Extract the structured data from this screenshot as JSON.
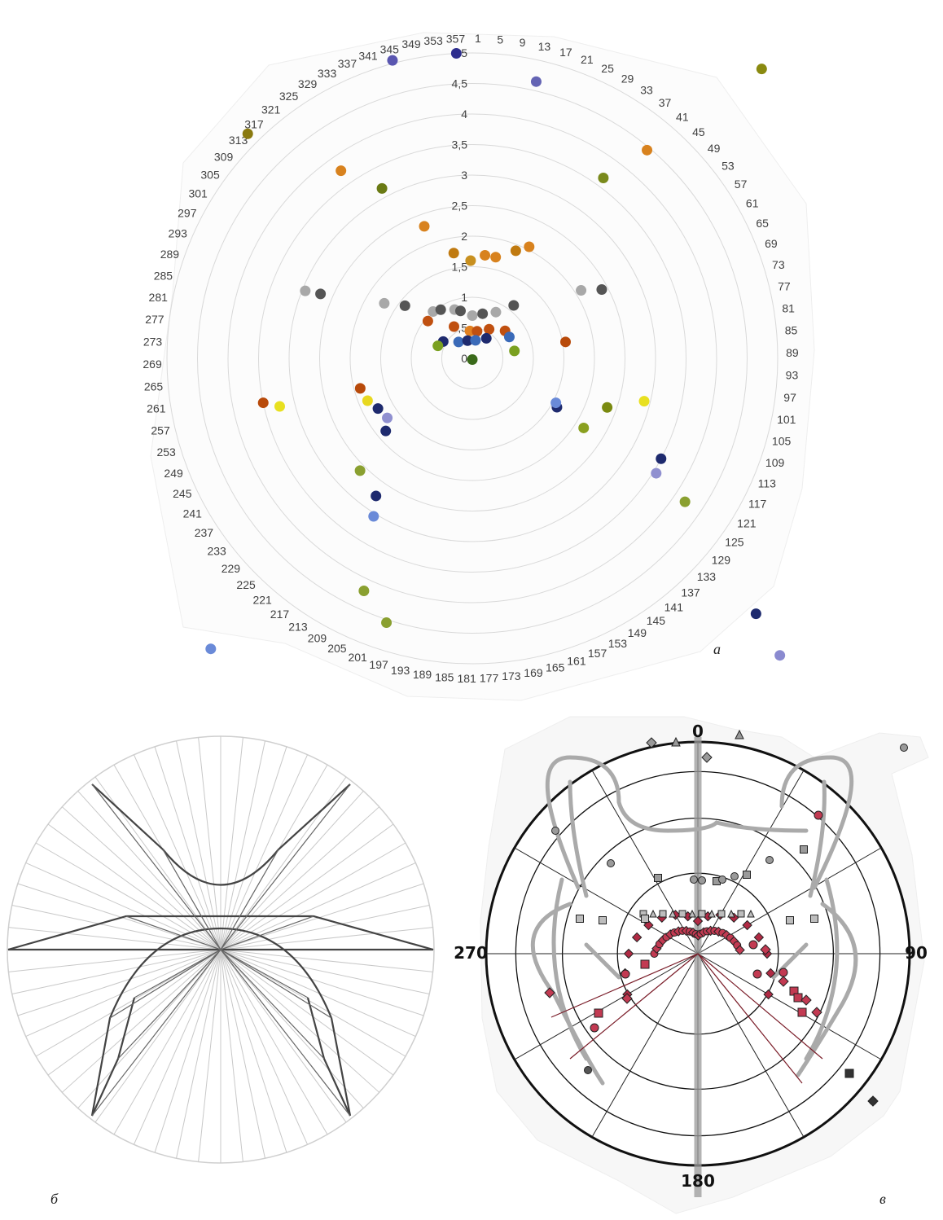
{
  "figure": {
    "panel_labels": [
      "а",
      "б",
      "в"
    ]
  },
  "chart_data": [
    {
      "type": "scatter",
      "polar": true,
      "panel": "а",
      "theta_ticks": [
        "1",
        "5",
        "9",
        "13",
        "17",
        "21",
        "25",
        "29",
        "33",
        "37",
        "41",
        "45",
        "49",
        "53",
        "57",
        "61",
        "65",
        "69",
        "73",
        "77",
        "81",
        "85",
        "89",
        "93",
        "97",
        "101",
        "105",
        "109",
        "113",
        "117",
        "121",
        "125",
        "129",
        "133",
        "137",
        "141",
        "145",
        "149",
        "153",
        "157",
        "161",
        "165",
        "169",
        "173",
        "177",
        "181",
        "185",
        "189",
        "193",
        "197",
        "201",
        "205",
        "209",
        "213",
        "217",
        "221",
        "225",
        "229",
        "233",
        "237",
        "241",
        "245",
        "249",
        "253",
        "257",
        "261",
        "265",
        "269",
        "273",
        "277",
        "281",
        "285",
        "289",
        "293",
        "297",
        "301",
        "305",
        "309",
        "313",
        "317",
        "321",
        "325",
        "329",
        "333",
        "337",
        "341",
        "345",
        "349",
        "353",
        "357"
      ],
      "r_ticks": [
        "0",
        "0,5",
        "1",
        "1,5",
        "2",
        "2,5",
        "3",
        "3,5",
        "4",
        "4,5",
        "5"
      ],
      "r_range": [
        0,
        5
      ],
      "grid": true,
      "points": [
        {
          "theta": 357,
          "r": 5.0,
          "color": "#2e2e8e"
        },
        {
          "theta": 345,
          "r": 5.05,
          "color": "#5a56b0"
        },
        {
          "theta": 13,
          "r": 4.65,
          "color": "#6464b4"
        },
        {
          "theta": 45,
          "r": 6.7,
          "color": "#8a8a10"
        },
        {
          "theta": 315,
          "r": 5.2,
          "color": "#8a7a10"
        },
        {
          "theta": 40,
          "r": 4.45,
          "color": "#d8821e"
        },
        {
          "theta": 36,
          "r": 3.65,
          "color": "#7a8a1c"
        },
        {
          "theta": 325,
          "r": 3.75,
          "color": "#d8821e"
        },
        {
          "theta": 332,
          "r": 3.15,
          "color": "#6a7a14"
        },
        {
          "theta": 340,
          "r": 2.3,
          "color": "#d8821e"
        },
        {
          "theta": 350,
          "r": 1.75,
          "color": "#c07a10"
        },
        {
          "theta": 359,
          "r": 1.6,
          "color": "#c89020"
        },
        {
          "theta": 7,
          "r": 1.7,
          "color": "#d8821e"
        },
        {
          "theta": 13,
          "r": 1.7,
          "color": "#d8821e"
        },
        {
          "theta": 22,
          "r": 1.9,
          "color": "#c07a10"
        },
        {
          "theta": 27,
          "r": 2.05,
          "color": "#d8821e"
        },
        {
          "theta": 292,
          "r": 2.95,
          "color": "#a8a8a8"
        },
        {
          "theta": 293,
          "r": 2.7,
          "color": "#555555"
        },
        {
          "theta": 302,
          "r": 1.7,
          "color": "#a8a8a8"
        },
        {
          "theta": 308,
          "r": 1.4,
          "color": "#555555"
        },
        {
          "theta": 320,
          "r": 1.0,
          "color": "#a8a8a8"
        },
        {
          "theta": 327,
          "r": 0.95,
          "color": "#555555"
        },
        {
          "theta": 340,
          "r": 0.85,
          "color": "#a8a8a8"
        },
        {
          "theta": 346,
          "r": 0.8,
          "color": "#555555"
        },
        {
          "theta": 0,
          "r": 0.7,
          "color": "#a8a8a8"
        },
        {
          "theta": 13,
          "r": 0.75,
          "color": "#555555"
        },
        {
          "theta": 27,
          "r": 0.85,
          "color": "#a8a8a8"
        },
        {
          "theta": 38,
          "r": 1.1,
          "color": "#555555"
        },
        {
          "theta": 58,
          "r": 2.1,
          "color": "#a8a8a8"
        },
        {
          "theta": 62,
          "r": 2.4,
          "color": "#555555"
        },
        {
          "theta": 310,
          "r": 0.95,
          "color": "#c05010"
        },
        {
          "theta": 330,
          "r": 0.6,
          "color": "#c05010"
        },
        {
          "theta": 355,
          "r": 0.45,
          "color": "#e08020"
        },
        {
          "theta": 10,
          "r": 0.45,
          "color": "#c05010"
        },
        {
          "theta": 30,
          "r": 0.55,
          "color": "#c05010"
        },
        {
          "theta": 50,
          "r": 0.7,
          "color": "#c05010"
        },
        {
          "theta": 80,
          "r": 1.55,
          "color": "#b84a0a"
        },
        {
          "theta": 300,
          "r": 0.55,
          "color": "#1e2a6e"
        },
        {
          "theta": 320,
          "r": 0.35,
          "color": "#3a6ab8"
        },
        {
          "theta": 345,
          "r": 0.3,
          "color": "#1e2a6e"
        },
        {
          "theta": 10,
          "r": 0.3,
          "color": "#3a6ab8"
        },
        {
          "theta": 35,
          "r": 0.4,
          "color": "#1e2a6e"
        },
        {
          "theta": 60,
          "r": 0.7,
          "color": "#3a6ab8"
        },
        {
          "theta": 290,
          "r": 0.6,
          "color": "#7aa020"
        },
        {
          "theta": 80,
          "r": 0.7,
          "color": "#7aa020"
        },
        {
          "theta": 180,
          "r": 0.02,
          "color": "#3a6a1a"
        },
        {
          "theta": 255,
          "r": 1.9,
          "color": "#b84a0a"
        },
        {
          "theta": 248,
          "r": 1.85,
          "color": "#e8d820"
        },
        {
          "theta": 242,
          "r": 1.75,
          "color": "#1e2a6e"
        },
        {
          "theta": 235,
          "r": 1.7,
          "color": "#9090d0"
        },
        {
          "theta": 230,
          "r": 1.85,
          "color": "#1e2a6e"
        },
        {
          "theta": 120,
          "r": 1.6,
          "color": "#1e2a6e"
        },
        {
          "theta": 118,
          "r": 1.55,
          "color": "#6a8ad8"
        },
        {
          "theta": 104,
          "r": 2.9,
          "color": "#e8e020"
        },
        {
          "theta": 122,
          "r": 2.15,
          "color": "#8aa020"
        },
        {
          "theta": 110,
          "r": 2.35,
          "color": "#7a8a10"
        },
        {
          "theta": 118,
          "r": 3.5,
          "color": "#1e2a6e"
        },
        {
          "theta": 122,
          "r": 3.55,
          "color": "#9090d0"
        },
        {
          "theta": 124,
          "r": 4.2,
          "color": "#8aa030"
        },
        {
          "theta": 225,
          "r": 2.6,
          "color": "#8aa030"
        },
        {
          "theta": 215,
          "r": 2.75,
          "color": "#1e2a6e"
        },
        {
          "theta": 212,
          "r": 3.05,
          "color": "#6a8ad8"
        },
        {
          "theta": 198,
          "r": 4.55,
          "color": "#8aa030"
        },
        {
          "theta": 205,
          "r": 4.2,
          "color": "#8aa030"
        },
        {
          "theta": 258,
          "r": 3.5,
          "color": "#b84a0a"
        },
        {
          "theta": 256,
          "r": 3.25,
          "color": "#e8e020"
        },
        {
          "theta": 132,
          "r": 6.25,
          "color": "#1e2a6e"
        },
        {
          "theta": 134,
          "r": 7.0,
          "color": "#8a8ad0"
        },
        {
          "theta": 222,
          "r": 6.4,
          "color": "#6a8ad8"
        }
      ]
    },
    {
      "type": "line",
      "polar": true,
      "panel": "б",
      "grid": true
    },
    {
      "type": "scatter",
      "polar": true,
      "panel": "в",
      "theta_ticks": [
        "0",
        "90",
        "180",
        "270"
      ],
      "grid": true
    }
  ]
}
